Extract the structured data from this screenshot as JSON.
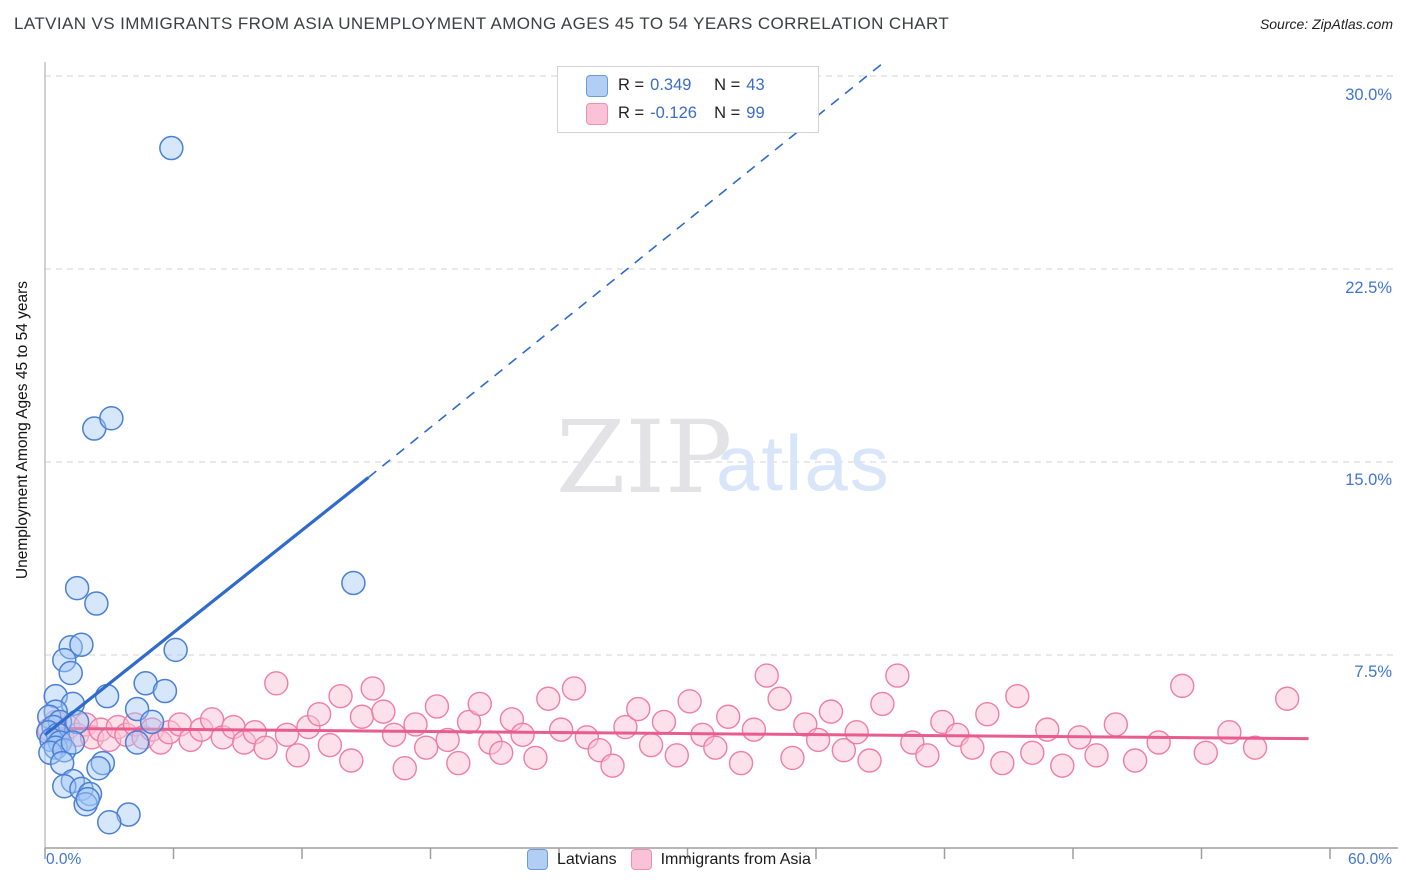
{
  "header": {
    "title": "LATVIAN VS IMMIGRANTS FROM ASIA UNEMPLOYMENT AMONG AGES 45 TO 54 YEARS CORRELATION CHART",
    "source": "Source: ZipAtlas.com"
  },
  "watermark": {
    "part1": "ZIP",
    "part2": "atlas"
  },
  "stats_legend": {
    "rows": [
      {
        "series": "Latvians",
        "r_label": "R =",
        "r_value": "0.349",
        "n_label": "N =",
        "n_value": "43"
      },
      {
        "series": "Immigrants from Asia",
        "r_label": "R =",
        "r_value": "-0.126",
        "n_label": "N =",
        "n_value": "99"
      }
    ]
  },
  "bottom_legend": {
    "series1": "Latvians",
    "series2": "Immigrants from Asia"
  },
  "chart_data": {
    "type": "scatter",
    "title": "Latvian vs Immigrants from Asia Unemployment Among Ages 45 to 54 years",
    "ylabel": "Unemployment Among Ages 45 to 54 years",
    "xlim": [
      0,
      60
    ],
    "ylim": [
      0,
      30.6
    ],
    "x_unit": "%",
    "y_unit": "%",
    "grid": "horizontal-dashed",
    "legend_position": "top-center",
    "y_gridlines": [
      7.5,
      15.0,
      22.5,
      30.0
    ],
    "y_tick_labels": [
      "30.0%",
      "22.5%",
      "15.0%",
      "7.5%"
    ],
    "x_min_label": "0.0%",
    "x_max_label": "60.0%",
    "x_tick_step_pct": 6,
    "colors": {
      "latvians_fill": "rgba(164,199,247,0.45)",
      "latvians_stroke": "#4a80d6",
      "latvians_trend": "#2e6bcc",
      "asia_fill": "rgba(249,195,214,0.5)",
      "asia_stroke": "#f07da6",
      "asia_trend": "#e85c8e"
    },
    "series": [
      {
        "name": "Latvians",
        "R": 0.349,
        "N": 43,
        "trendline": {
          "solid": [
            [
              0,
              4.4
            ],
            [
              15.1,
              14.4
            ]
          ],
          "dashed_extension": [
            [
              15.1,
              14.4
            ],
            [
              39.2,
              30.55
            ]
          ]
        },
        "points": [
          [
            5.9,
            27.2
          ],
          [
            2.3,
            16.3
          ],
          [
            3.1,
            16.7
          ],
          [
            1.5,
            10.1
          ],
          [
            2.4,
            9.5
          ],
          [
            1.2,
            7.8
          ],
          [
            1.7,
            7.9
          ],
          [
            0.9,
            7.3
          ],
          [
            1.2,
            6.8
          ],
          [
            6.1,
            7.7
          ],
          [
            4.7,
            6.4
          ],
          [
            5.6,
            6.1
          ],
          [
            14.4,
            10.3
          ],
          [
            0.5,
            5.9
          ],
          [
            1.3,
            5.6
          ],
          [
            0.5,
            5.3
          ],
          [
            0.2,
            5.1
          ],
          [
            0.7,
            4.9
          ],
          [
            0.4,
            4.7
          ],
          [
            0.15,
            4.5
          ],
          [
            0.6,
            4.4
          ],
          [
            0.3,
            4.2
          ],
          [
            0.7,
            4.1
          ],
          [
            0.5,
            3.9
          ],
          [
            0.25,
            3.7
          ],
          [
            0.9,
            3.8
          ],
          [
            1.5,
            4.9
          ],
          [
            1.3,
            4.1
          ],
          [
            2.9,
            5.9
          ],
          [
            4.3,
            5.4
          ],
          [
            5.0,
            4.9
          ],
          [
            4.3,
            4.1
          ],
          [
            2.7,
            3.3
          ],
          [
            0.8,
            3.3
          ],
          [
            1.3,
            2.6
          ],
          [
            0.9,
            2.4
          ],
          [
            1.7,
            2.3
          ],
          [
            2.5,
            3.1
          ],
          [
            2.1,
            2.1
          ],
          [
            1.9,
            1.7
          ],
          [
            3.9,
            1.3
          ],
          [
            3.0,
            1.0
          ],
          [
            2.0,
            1.9
          ]
        ]
      },
      {
        "name": "Immigrants from Asia",
        "R": -0.126,
        "N": 99,
        "trendline": {
          "solid": [
            [
              0,
              4.65
            ],
            [
              59,
              4.25
            ]
          ]
        },
        "points": [
          [
            0.2,
            4.6
          ],
          [
            0.5,
            4.9
          ],
          [
            0.8,
            4.3
          ],
          [
            1.1,
            4.7
          ],
          [
            1.5,
            4.4
          ],
          [
            1.9,
            4.8
          ],
          [
            2.2,
            4.3
          ],
          [
            2.6,
            4.6
          ],
          [
            3.0,
            4.2
          ],
          [
            3.4,
            4.7
          ],
          [
            3.8,
            4.4
          ],
          [
            4.2,
            4.8
          ],
          [
            4.6,
            4.3
          ],
          [
            5.0,
            4.6
          ],
          [
            5.4,
            4.1
          ],
          [
            5.8,
            4.5
          ],
          [
            6.3,
            4.8
          ],
          [
            6.8,
            4.2
          ],
          [
            7.3,
            4.6
          ],
          [
            7.8,
            5.0
          ],
          [
            8.3,
            4.3
          ],
          [
            8.8,
            4.7
          ],
          [
            9.3,
            4.1
          ],
          [
            9.8,
            4.5
          ],
          [
            10.3,
            3.9
          ],
          [
            10.8,
            6.4
          ],
          [
            11.3,
            4.4
          ],
          [
            11.8,
            3.6
          ],
          [
            12.3,
            4.7
          ],
          [
            12.8,
            5.2
          ],
          [
            13.3,
            4.0
          ],
          [
            13.8,
            5.9
          ],
          [
            14.3,
            3.4
          ],
          [
            14.8,
            5.1
          ],
          [
            15.3,
            6.2
          ],
          [
            15.8,
            5.3
          ],
          [
            16.3,
            4.4
          ],
          [
            16.8,
            3.1
          ],
          [
            17.3,
            4.8
          ],
          [
            17.8,
            3.9
          ],
          [
            18.3,
            5.5
          ],
          [
            18.8,
            4.2
          ],
          [
            19.3,
            3.3
          ],
          [
            19.8,
            4.9
          ],
          [
            20.3,
            5.6
          ],
          [
            20.8,
            4.1
          ],
          [
            21.3,
            3.7
          ],
          [
            21.8,
            5.0
          ],
          [
            22.3,
            4.4
          ],
          [
            22.9,
            3.5
          ],
          [
            23.5,
            5.8
          ],
          [
            24.1,
            4.6
          ],
          [
            24.7,
            6.2
          ],
          [
            25.3,
            4.3
          ],
          [
            25.9,
            3.8
          ],
          [
            26.5,
            3.2
          ],
          [
            27.1,
            4.7
          ],
          [
            27.7,
            5.4
          ],
          [
            28.3,
            4.0
          ],
          [
            28.9,
            4.9
          ],
          [
            29.5,
            3.6
          ],
          [
            30.1,
            5.7
          ],
          [
            30.7,
            4.4
          ],
          [
            31.3,
            3.9
          ],
          [
            31.9,
            5.1
          ],
          [
            32.5,
            3.3
          ],
          [
            33.1,
            4.6
          ],
          [
            33.7,
            6.7
          ],
          [
            34.3,
            5.8
          ],
          [
            34.9,
            3.5
          ],
          [
            35.5,
            4.8
          ],
          [
            36.1,
            4.2
          ],
          [
            36.7,
            5.3
          ],
          [
            37.3,
            3.8
          ],
          [
            37.9,
            4.5
          ],
          [
            38.5,
            3.4
          ],
          [
            39.1,
            5.6
          ],
          [
            39.8,
            6.7
          ],
          [
            40.5,
            4.1
          ],
          [
            41.2,
            3.6
          ],
          [
            41.9,
            4.9
          ],
          [
            42.6,
            4.4
          ],
          [
            43.3,
            3.9
          ],
          [
            44.0,
            5.2
          ],
          [
            44.7,
            3.3
          ],
          [
            45.4,
            5.9
          ],
          [
            46.1,
            3.7
          ],
          [
            46.8,
            4.6
          ],
          [
            47.5,
            3.2
          ],
          [
            48.3,
            4.3
          ],
          [
            49.1,
            3.6
          ],
          [
            50.0,
            4.8
          ],
          [
            50.9,
            3.4
          ],
          [
            52.0,
            4.1
          ],
          [
            53.1,
            6.3
          ],
          [
            54.2,
            3.7
          ],
          [
            55.3,
            4.5
          ],
          [
            56.5,
            3.9
          ],
          [
            58.0,
            5.8
          ]
        ]
      }
    ]
  }
}
